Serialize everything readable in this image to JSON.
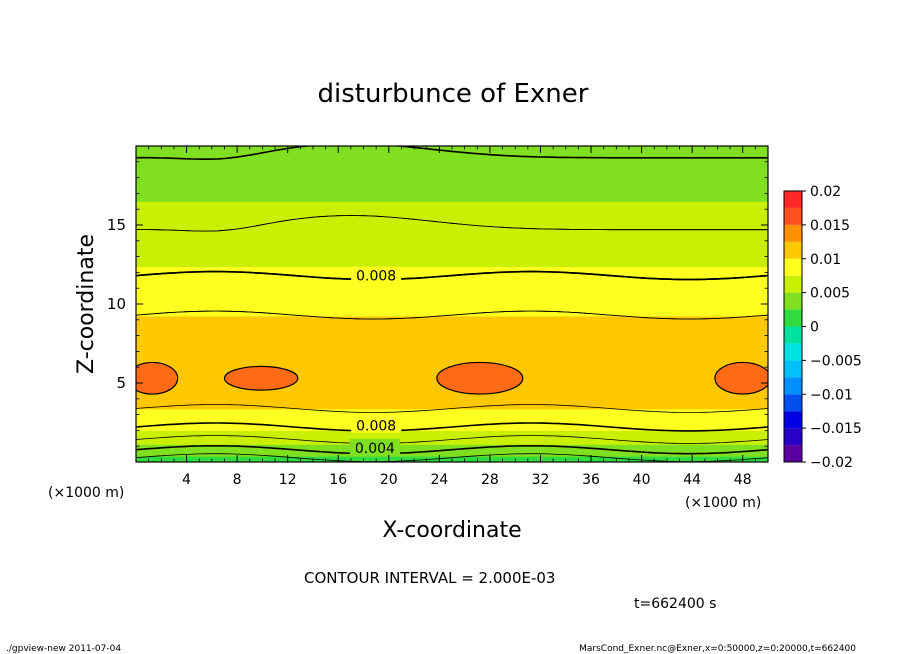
{
  "chart_data": {
    "type": "contour",
    "title": "disturbunce of Exner",
    "xlabel": "X-coordinate",
    "ylabel": "Z-coordinate",
    "x_unit_left": "(×1000 m)",
    "x_unit_right": "(×1000 m)",
    "xlim": [
      0,
      50
    ],
    "ylim": [
      0,
      20
    ],
    "x_ticks": [
      4,
      8,
      12,
      16,
      20,
      24,
      28,
      32,
      36,
      40,
      44,
      48
    ],
    "x_tick_labels": [
      "4",
      "8",
      "12",
      "16",
      "20",
      "24",
      "28",
      "32",
      "36",
      "40",
      "44",
      "48"
    ],
    "y_ticks": [
      5,
      10,
      15
    ],
    "y_tick_labels": [
      "5",
      "10",
      "15"
    ],
    "color_levels": [
      -0.02,
      -0.0175,
      -0.015,
      -0.0125,
      -0.01,
      -0.0075,
      -0.005,
      -0.0025,
      0,
      0.0025,
      0.005,
      0.0075,
      0.01,
      0.0125,
      0.015,
      0.0175,
      0.02
    ],
    "level_colors": [
      "#5a00a0",
      "#2800c8",
      "#0000e0",
      "#0050f0",
      "#0090ff",
      "#00c0ff",
      "#00e0e0",
      "#00e0a0",
      "#30dc40",
      "#80e020",
      "#c8f000",
      "#ffff20",
      "#ffc800",
      "#ff9000",
      "#ff5020",
      "#ff2828",
      "#ff8080"
    ],
    "colorbar_labels": [
      "0.02",
      "0.015",
      "0.01",
      "0.005",
      "0",
      "−0.005",
      "−0.01",
      "−0.015",
      "−0.02"
    ],
    "colorbar_values": [
      0.02,
      0.015,
      0.01,
      0.005,
      0,
      -0.005,
      -0.01,
      -0.015,
      -0.02
    ],
    "contour_labels": [
      {
        "text": "0.008",
        "x": 19.0,
        "z": 11.8
      },
      {
        "text": "0.008",
        "x": 19.0,
        "z": 2.3
      },
      {
        "text": "0.004",
        "x": 18.9,
        "z": 0.9
      }
    ],
    "vertical_profile": [
      {
        "z": 0.0,
        "value": 0.0008
      },
      {
        "z": 0.5,
        "value": 0.003
      },
      {
        "z": 1.0,
        "value": 0.0048
      },
      {
        "z": 1.6,
        "value": 0.0065
      },
      {
        "z": 2.3,
        "value": 0.0082
      },
      {
        "z": 3.2,
        "value": 0.0098
      },
      {
        "z": 4.5,
        "value": 0.0112
      },
      {
        "z": 5.5,
        "value": 0.0117
      },
      {
        "z": 6.5,
        "value": 0.0113
      },
      {
        "z": 8.0,
        "value": 0.0106
      },
      {
        "z": 9.3,
        "value": 0.01
      },
      {
        "z": 10.5,
        "value": 0.009
      },
      {
        "z": 11.8,
        "value": 0.008
      },
      {
        "z": 13.2,
        "value": 0.0068
      },
      {
        "z": 14.7,
        "value": 0.006
      },
      {
        "z": 16.5,
        "value": 0.005
      },
      {
        "z": 18.5,
        "value": 0.0042
      },
      {
        "z": 20.0,
        "value": 0.0038
      }
    ],
    "maxima_regions": [
      {
        "x_center": 1.3,
        "z_center": 5.3,
        "x_halfwidth": 2.0,
        "z_halfwidth": 1.0
      },
      {
        "x_center": 9.9,
        "z_center": 5.3,
        "x_halfwidth": 2.9,
        "z_halfwidth": 0.75
      },
      {
        "x_center": 27.2,
        "z_center": 5.3,
        "x_halfwidth": 3.4,
        "z_halfwidth": 1.0
      },
      {
        "x_center": 48.0,
        "z_center": 5.3,
        "x_halfwidth": 2.2,
        "z_halfwidth": 1.0
      }
    ]
  },
  "contour_interval": "CONTOUR INTERVAL = 2.000E-03",
  "time_label": "t=662400 s",
  "footer_left": "./gpview-new   2011-07-04",
  "footer_right": "MarsCond_Exner.nc@Exner,x=0:50000,z=0:20000,t=662400"
}
